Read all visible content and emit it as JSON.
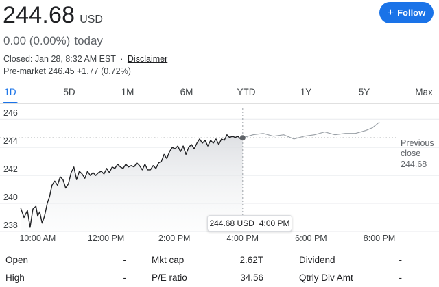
{
  "quote": {
    "price": "244.68",
    "currency": "USD",
    "change": "0.00 (0.00%)",
    "change_period": "today",
    "closed_text": "Closed: Jan 28, 8:32 AM EST",
    "separator": "·",
    "disclaimer": "Disclaimer",
    "premarket": "Pre-market 246.45 +1.77 (0.72%)"
  },
  "follow_button": {
    "icon": "plus-icon",
    "label": "Follow",
    "color": "#1a73e8"
  },
  "tabs": [
    {
      "label": "1D",
      "active": true
    },
    {
      "label": "5D"
    },
    {
      "label": "1M"
    },
    {
      "label": "6M"
    },
    {
      "label": "YTD"
    },
    {
      "label": "1Y"
    },
    {
      "label": "5Y"
    },
    {
      "label": "Max"
    }
  ],
  "chart_data": {
    "type": "line",
    "ylim": [
      238,
      246.4
    ],
    "xlim": [
      9.5,
      20.5
    ],
    "y_ticks": [
      "238",
      "240",
      "242",
      "244",
      "246"
    ],
    "x_ticks": [
      {
        "label": "10:00 AM",
        "x": 10
      },
      {
        "label": "12:00 PM",
        "x": 12
      },
      {
        "label": "2:00 PM",
        "x": 14
      },
      {
        "label": "4:00 PM",
        "x": 16
      },
      {
        "label": "6:00 PM",
        "x": 18
      },
      {
        "label": "8:00 PM",
        "x": 20
      }
    ],
    "previous_close": 244.68,
    "previous_close_label": [
      "Previous",
      "close",
      "244.68"
    ],
    "series": [
      {
        "session": "regular",
        "color": "#202124",
        "x": [
          9.5,
          9.6,
          9.7,
          9.78,
          9.86,
          9.95,
          10.0,
          10.06,
          10.13,
          10.2,
          10.28,
          10.35,
          10.42,
          10.5,
          10.58,
          10.66,
          10.74,
          10.82,
          10.9,
          10.98,
          11.06,
          11.14,
          11.22,
          11.3,
          11.38,
          11.46,
          11.54,
          11.62,
          11.7,
          11.78,
          11.86,
          11.94,
          12.02,
          12.1,
          12.18,
          12.26,
          12.34,
          12.42,
          12.5,
          12.58,
          12.66,
          12.74,
          12.82,
          12.9,
          12.98,
          13.06,
          13.14,
          13.22,
          13.3,
          13.38,
          13.46,
          13.54,
          13.62,
          13.7,
          13.78,
          13.86,
          13.94,
          14.02,
          14.1,
          14.18,
          14.26,
          14.34,
          14.42,
          14.5,
          14.58,
          14.66,
          14.74,
          14.82,
          14.9,
          14.98,
          15.06,
          15.14,
          15.22,
          15.3,
          15.38,
          15.46,
          15.54,
          15.62,
          15.7,
          15.78,
          15.86,
          15.94,
          16.0
        ],
        "values": [
          239.7,
          239.0,
          239.5,
          238.3,
          239.6,
          239.8,
          239.1,
          239.4,
          238.6,
          239.1,
          240.0,
          240.5,
          241.3,
          241.6,
          241.3,
          241.9,
          241.7,
          241.1,
          241.4,
          242.2,
          242.6,
          241.7,
          242.3,
          242.1,
          241.8,
          242.3,
          242.0,
          242.2,
          242.0,
          242.2,
          242.3,
          242.1,
          242.5,
          242.2,
          242.6,
          242.5,
          242.8,
          242.6,
          242.5,
          242.8,
          242.6,
          242.7,
          242.6,
          242.9,
          242.7,
          242.4,
          242.8,
          242.4,
          242.4,
          242.7,
          242.5,
          242.9,
          243.0,
          243.5,
          243.2,
          243.7,
          244.0,
          243.9,
          244.1,
          243.7,
          244.1,
          243.5,
          244.0,
          244.2,
          243.9,
          244.3,
          244.6,
          244.3,
          244.5,
          244.1,
          244.5,
          244.3,
          244.6,
          244.2,
          244.6,
          244.5,
          244.9,
          244.7,
          244.8,
          244.7,
          244.8,
          244.6,
          244.68
        ]
      },
      {
        "session": "after-hours",
        "color": "#9aa0a6",
        "x": [
          16.0,
          16.3,
          16.6,
          16.9,
          17.2,
          17.5,
          17.8,
          18.1,
          18.4,
          18.7,
          19.0,
          19.3,
          19.6,
          19.8,
          20.0
        ],
        "values": [
          244.68,
          244.9,
          245.0,
          244.8,
          244.9,
          244.6,
          244.8,
          244.9,
          245.1,
          244.9,
          245.0,
          245.0,
          245.2,
          245.4,
          245.8
        ]
      }
    ],
    "tooltip": {
      "price": "244.68 USD",
      "time": "4:00 PM"
    }
  },
  "stats": [
    {
      "left_label": "Open",
      "left_value": "-",
      "mid_label": "Mkt cap",
      "mid_value": "2.62T",
      "right_label": "Dividend",
      "right_value": "-"
    },
    {
      "left_label": "High",
      "left_value": "-",
      "mid_label": "P/E ratio",
      "mid_value": "34.56",
      "right_label": "Qtrly Div Amt",
      "right_value": "-"
    }
  ]
}
